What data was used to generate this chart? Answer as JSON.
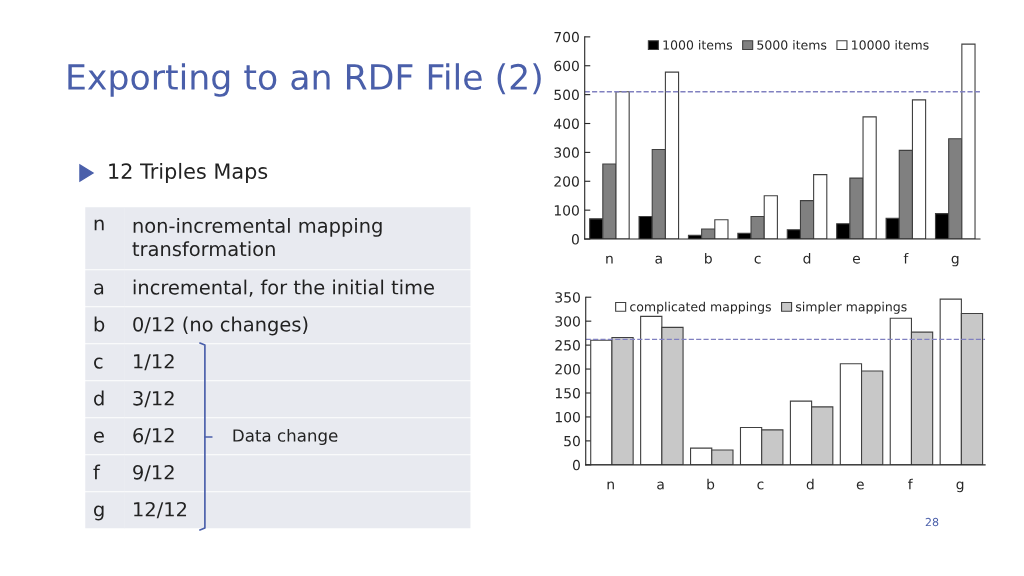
{
  "chart_data": [
    {
      "type": "other",
      "title": "Exporting to an RDF File (2)",
      "annotations": [
        "12 Triples Maps",
        "n",
        "non-incremental mapping\ntransformation",
        "a",
        "incremental, for the initial time",
        "b",
        "0/12 (no changes)",
        "c",
        "1/12",
        "d",
        "3/12",
        "e",
        "6/12",
        "f",
        "9/12",
        "g",
        "12/12",
        "Data change",
        "28"
      ]
    },
    {
      "type": "bar",
      "categories": [
        "n",
        "a",
        "b",
        "c",
        "d",
        "e",
        "f",
        "g"
      ],
      "ylim": [
        0,
        700
      ],
      "yticks": [
        0,
        100,
        200,
        300,
        400,
        500,
        600,
        700
      ],
      "legend": "top right",
      "grid": false,
      "series": [
        {
          "name": "1000 items",
          "color": "#000000",
          "values": [
            70,
            78,
            13,
            20,
            32,
            53,
            72,
            88
          ]
        },
        {
          "name": "5000 items",
          "color": "#808080",
          "values": [
            260,
            310,
            35,
            78,
            133,
            211,
            307,
            347
          ]
        },
        {
          "name": "10000 items",
          "color": "#ffffff",
          "values": [
            510,
            578,
            67,
            150,
            223,
            423,
            482,
            675
          ]
        }
      ],
      "ref_lines": [
        {
          "axis": "y",
          "value": 510,
          "color": "#8080c0",
          "line_style": "dashed"
        }
      ]
    },
    {
      "type": "bar",
      "categories": [
        "n",
        "a",
        "b",
        "c",
        "d",
        "e",
        "f",
        "g"
      ],
      "ylim": [
        0,
        350
      ],
      "yticks": [
        0,
        50,
        100,
        150,
        200,
        250,
        300,
        350
      ],
      "legend": "top",
      "grid": false,
      "series": [
        {
          "name": "complicated mappings",
          "color": "#ffffff",
          "values": [
            260,
            310,
            35,
            78,
            133,
            211,
            306,
            346
          ]
        },
        {
          "name": "simpler mappings",
          "color": "#c8c8c8",
          "values": [
            266,
            287,
            31,
            73,
            121,
            196,
            277,
            316
          ]
        }
      ],
      "ref_lines": [
        {
          "axis": "y",
          "value": 262,
          "color": "#8080c0",
          "line_style": "dashed"
        }
      ]
    }
  ]
}
